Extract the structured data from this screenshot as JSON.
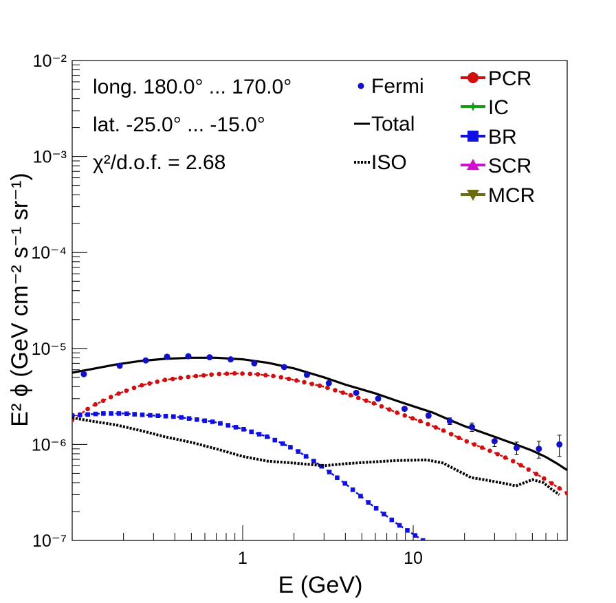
{
  "chart_data": {
    "type": "line",
    "xscale": "log",
    "yscale": "log",
    "xlim": [
      0.1,
      80
    ],
    "ylim": [
      1e-07,
      0.01
    ],
    "xlabel": "E (GeV)",
    "ylabel": "E² ϕ (GeV cm⁻² s⁻¹ sr⁻¹)",
    "x_ticks": [
      {
        "value": 1,
        "label": "1"
      },
      {
        "value": 10,
        "label": "10"
      }
    ],
    "y_ticks": [
      {
        "value": 1e-07,
        "label": "10⁻⁷"
      },
      {
        "value": 1e-06,
        "label": "10⁻⁶"
      },
      {
        "value": 1e-05,
        "label": "10⁻⁵"
      },
      {
        "value": 0.0001,
        "label": "10⁻⁴"
      },
      {
        "value": 0.001,
        "label": "10⁻³"
      },
      {
        "value": 0.01,
        "label": "10⁻²"
      }
    ],
    "annotations": [
      "long. 180.0° ... 170.0°",
      "lat. -25.0° ... -15.0°",
      "χ²/d.o.f. = 2.68"
    ],
    "legend": [
      {
        "label": "Fermi",
        "style": "dot",
        "color": "#1010c8"
      },
      {
        "label": "Total",
        "style": "line",
        "color": "#000000"
      },
      {
        "label": "ISO",
        "style": "dotted",
        "color": "#000000"
      },
      {
        "label": "PCR",
        "style": "circle",
        "color": "#d01010"
      },
      {
        "label": "IC",
        "style": "star",
        "color": "#10a010"
      },
      {
        "label": "BR",
        "style": "square",
        "color": "#1010e0"
      },
      {
        "label": "SCR",
        "style": "triangle-up",
        "color": "#d010d0"
      },
      {
        "label": "MCR",
        "style": "triangle-down",
        "color": "#6b6b10"
      }
    ],
    "fermi": {
      "x": [
        0.117,
        0.19,
        0.27,
        0.36,
        0.48,
        0.64,
        0.85,
        1.17,
        1.75,
        2.38,
        3.2,
        4.63,
        6.23,
        8.9,
        12.3,
        16.4,
        22.1,
        30.0,
        40.4,
        54.6,
        72.0
      ],
      "y": [
        5.4e-06,
        6.6e-06,
        7.5e-06,
        8.2e-06,
        8.3e-06,
        8.1e-06,
        7.7e-06,
        7e-06,
        6.4e-06,
        5.3e-06,
        4.35e-06,
        3.45e-06,
        3e-06,
        2.35e-06,
        2e-06,
        1.75e-06,
        1.52e-06,
        1.08e-06,
        9.2e-07,
        9e-07,
        1e-06
      ],
      "err_rel": [
        0.03,
        0.03,
        0.03,
        0.03,
        0.03,
        0.03,
        0.03,
        0.03,
        0.03,
        0.03,
        0.03,
        0.03,
        0.04,
        0.05,
        0.06,
        0.08,
        0.1,
        0.12,
        0.15,
        0.2,
        0.25
      ]
    },
    "series": [
      {
        "name": "Total",
        "style": "solid",
        "color": "#000000",
        "x": [
          0.1,
          0.13,
          0.18,
          0.25,
          0.35,
          0.5,
          0.7,
          1.0,
          1.4,
          2.0,
          3.0,
          4.0,
          6.0,
          8.0,
          10.0,
          13.0,
          17.0,
          20.0,
          25.0,
          30.0,
          40.0,
          50.0,
          60.0,
          70.0,
          80.0
        ],
        "y": [
          5.6e-06,
          6.1e-06,
          6.8e-06,
          7.4e-06,
          7.8e-06,
          8e-06,
          8e-06,
          7.7e-06,
          7.1e-06,
          6.2e-06,
          5e-06,
          4.2e-06,
          3.4e-06,
          2.85e-06,
          2.5e-06,
          2.15e-06,
          1.75e-06,
          1.55e-06,
          1.35e-06,
          1.2e-06,
          1e-06,
          8.6e-07,
          7.4e-07,
          6.3e-07,
          5.4e-07
        ]
      },
      {
        "name": "PCR",
        "style": "markers",
        "marker": "circle",
        "color": "#d01010",
        "x": [
          0.1,
          0.13,
          0.18,
          0.25,
          0.35,
          0.5,
          0.7,
          0.9,
          1.2,
          1.6,
          2.0,
          3.0,
          4.0,
          6.0,
          8.0,
          11.0,
          15.0,
          20.0,
          30.0,
          40.0,
          50.0,
          60.0,
          70.0,
          80.0
        ],
        "y": [
          1.8e-06,
          2.5e-06,
          3.3e-06,
          4.1e-06,
          4.7e-06,
          5.1e-06,
          5.4e-06,
          5.5e-06,
          5.4e-06,
          5.1e-06,
          4.7e-06,
          4e-06,
          3.4e-06,
          2.65e-06,
          2.15e-06,
          1.75e-06,
          1.4e-06,
          1.1e-06,
          8.2e-07,
          6.5e-07,
          5.2e-07,
          4.3e-07,
          3.6e-07,
          3.1e-07
        ]
      },
      {
        "name": "BR",
        "style": "markers",
        "marker": "square",
        "color": "#1010e0",
        "x": [
          0.1,
          0.15,
          0.2,
          0.3,
          0.4,
          0.5,
          0.7,
          1.0,
          1.4,
          2.0,
          2.8,
          4.0,
          5.6,
          8.0,
          11.4
        ],
        "y": [
          2e-06,
          2.1e-06,
          2.1e-06,
          2e-06,
          1.95e-06,
          1.85e-06,
          1.7e-06,
          1.45e-06,
          1.2e-06,
          9e-07,
          6.2e-07,
          3.9e-07,
          2.4e-07,
          1.5e-07,
          1e-07
        ]
      },
      {
        "name": "ISO",
        "style": "dotted",
        "color": "#000000",
        "x": [
          0.1,
          0.13,
          0.18,
          0.25,
          0.35,
          0.5,
          0.7,
          1.0,
          1.4,
          2.0,
          3.0,
          4.0,
          6.0,
          8.0,
          12.0,
          15.0,
          18.0,
          22.0,
          26.0,
          30.0,
          35.0,
          40.0,
          45.0,
          50.0,
          58.0,
          65.0,
          72.0
        ],
        "y": [
          1.9e-06,
          1.75e-06,
          1.6e-06,
          1.4e-06,
          1.2e-06,
          1.05e-06,
          9e-07,
          7.5e-07,
          6.7e-07,
          6.4e-07,
          6e-07,
          6.3e-07,
          6.6e-07,
          6.8e-07,
          6.9e-07,
          6.4e-07,
          5.4e-07,
          4.5e-07,
          4.3e-07,
          4.1e-07,
          3.9e-07,
          3.7e-07,
          4e-07,
          4.3e-07,
          4e-07,
          3.4e-07,
          3e-07
        ]
      }
    ]
  }
}
